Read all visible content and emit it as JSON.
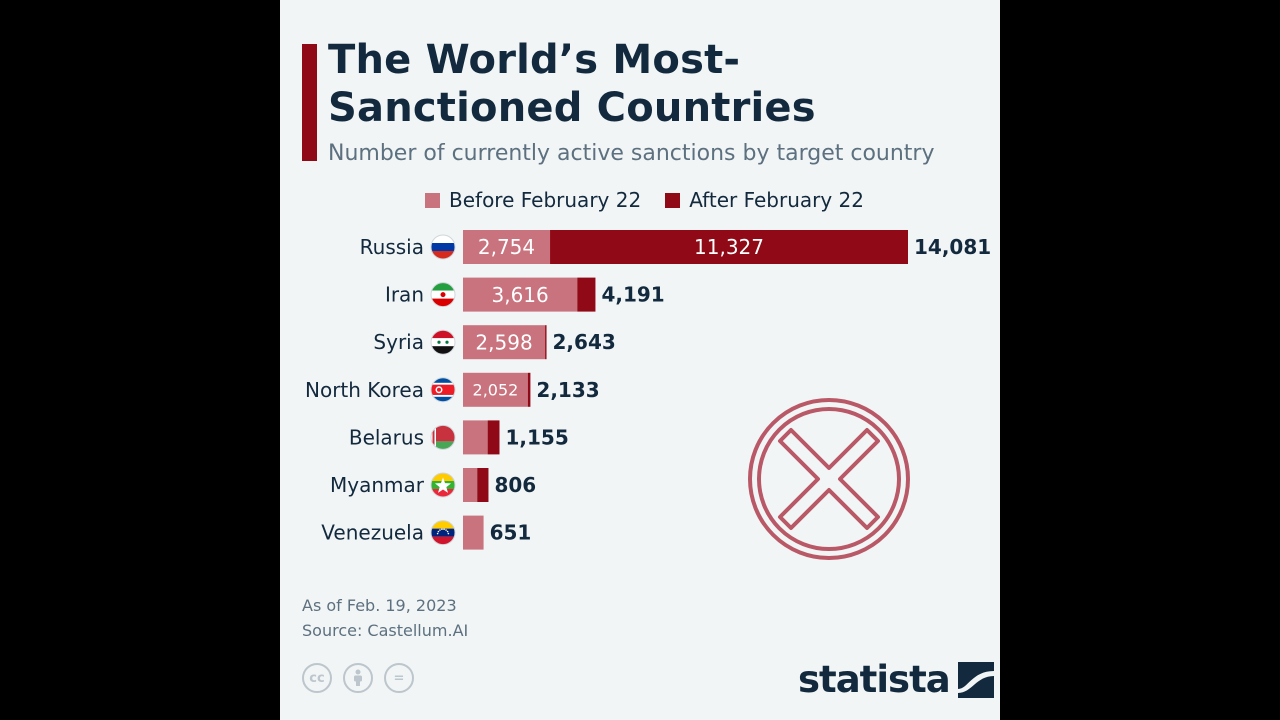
{
  "title": "The World’s Most-Sanctioned Countries",
  "subtitle": "Number of currently active sanctions by target country",
  "footnote": {
    "as_of": "As of Feb. 19, 2023",
    "source": "Source: Castellum.AI"
  },
  "brand": {
    "name": "statista"
  },
  "license_icons": [
    "cc-icon",
    "by-icon",
    "nd-icon"
  ],
  "license_glyphs": {
    "cc": "cc",
    "nd": "="
  },
  "colors": {
    "before": "#c9737e",
    "after": "#8f0a16",
    "title": "#13293d",
    "accent": "#8f0a16"
  },
  "chart_data": {
    "type": "bar",
    "orientation": "horizontal",
    "stacked": true,
    "legend_position": "top",
    "categories": [
      "Russia",
      "Iran",
      "Syria",
      "North Korea",
      "Belarus",
      "Myanmar",
      "Venezuela"
    ],
    "series": [
      {
        "name": "Before February 22",
        "values": [
          2754,
          3616,
          2598,
          2052,
          780,
          450,
          651
        ]
      },
      {
        "name": "After February 22",
        "values": [
          11327,
          575,
          45,
          81,
          375,
          356,
          0
        ]
      }
    ],
    "totals": [
      14081,
      4191,
      2643,
      2133,
      1155,
      806,
      651
    ],
    "total_labels": [
      "14,081",
      "4,191",
      "2,643",
      "2,133",
      "1,155",
      "806",
      "651"
    ],
    "segment_labels": [
      [
        "2,754",
        "11,327"
      ],
      [
        "3,616",
        ""
      ],
      [
        "2,598",
        ""
      ],
      [
        "2,052",
        ""
      ],
      [
        "",
        ""
      ],
      [
        "",
        ""
      ],
      [
        "",
        ""
      ]
    ],
    "flags": [
      "flag-russia-icon",
      "flag-iran-icon",
      "flag-syria-icon",
      "flag-north-korea-icon",
      "flag-belarus-icon",
      "flag-myanmar-icon",
      "flag-venezuela-icon"
    ],
    "xlim": [
      0,
      14081
    ],
    "grid": false
  }
}
